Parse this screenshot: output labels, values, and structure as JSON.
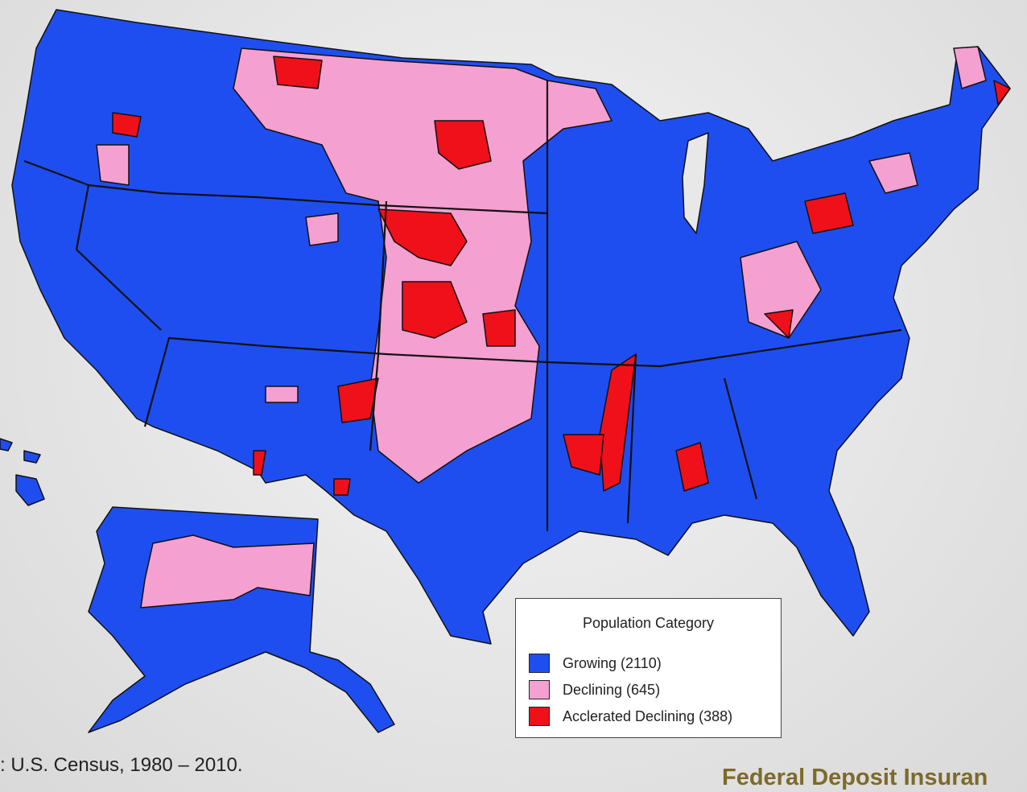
{
  "legend": {
    "title": "Population Category",
    "items": [
      {
        "label": "Growing (2110)",
        "color": "#1f4ef0"
      },
      {
        "label": "Declining (645)",
        "color": "#f4a0d0"
      },
      {
        "label": "Acclerated Declining (388)",
        "color": "#f0101a"
      }
    ]
  },
  "source": ": U.S. Census, 1980 – 2010.",
  "brand": "Federal Deposit Insuran"
}
